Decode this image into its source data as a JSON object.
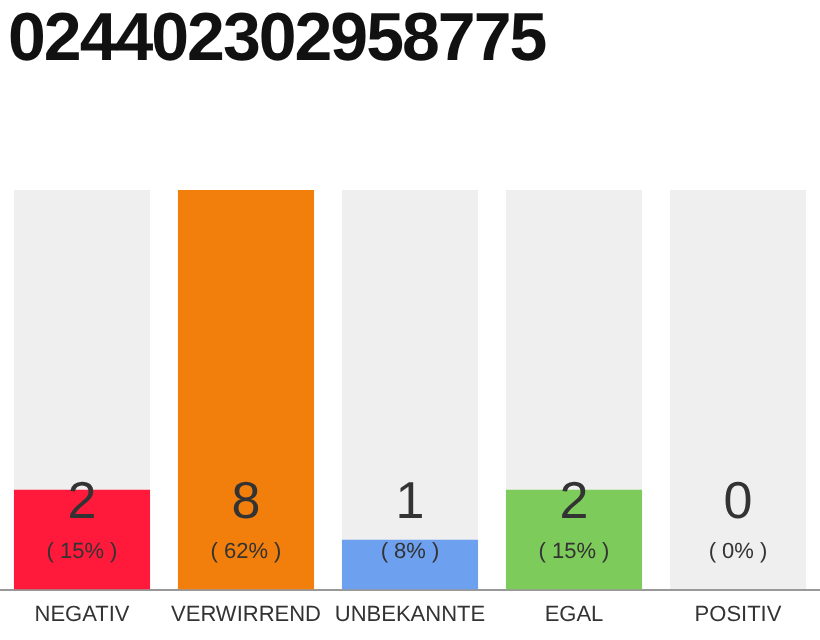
{
  "chart_data": {
    "type": "bar",
    "title": "024402302958775",
    "categories": [
      "NEGATIV",
      "VERWIRREND",
      "UNBEKANNTE",
      "EGAL",
      "POSITIV"
    ],
    "values": [
      2,
      8,
      1,
      2,
      0
    ],
    "colors": [
      "#ff1a3c",
      "#f27f0c",
      "#6ea0f0",
      "#7dcb5a",
      "#cccccc"
    ],
    "value_labels": [
      "2\n( 15% )",
      "8\n( 62% )",
      "1\n( 8% )",
      "2\n( 15% )",
      "0\n( 0% )"
    ],
    "grid": false,
    "legend": false
  }
}
